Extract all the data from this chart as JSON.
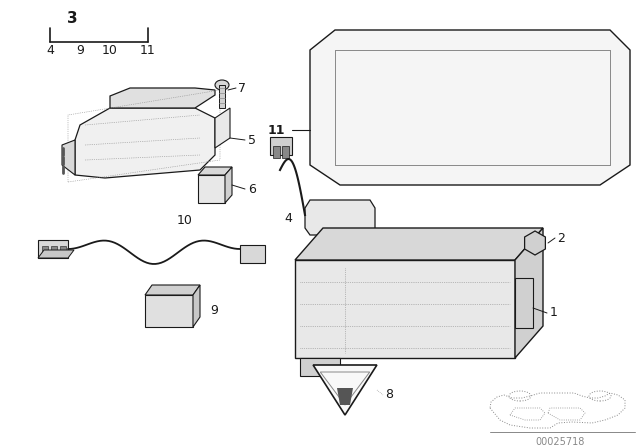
{
  "bg_color": "#ffffff",
  "line_color": "#1a1a1a",
  "watermark": "00025718",
  "figsize": [
    6.4,
    4.48
  ],
  "dpi": 100
}
